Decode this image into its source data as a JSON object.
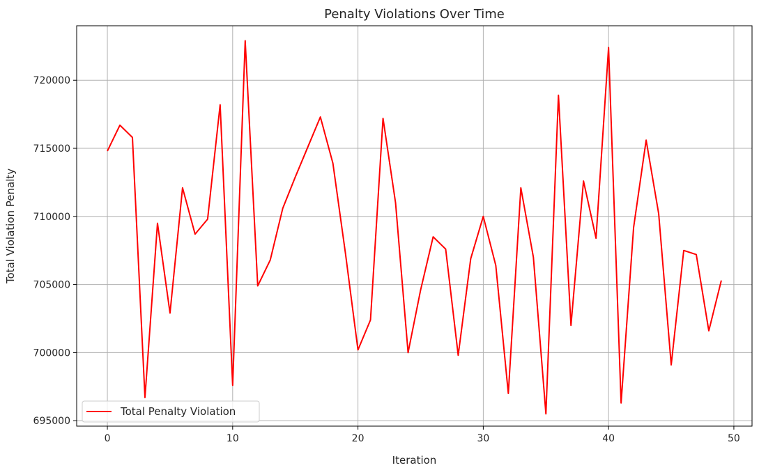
{
  "chart_data": {
    "type": "line",
    "title": "Penalty Violations Over Time",
    "xlabel": "Iteration",
    "ylabel": "Total Violation Penalty",
    "xlim": [
      -2.45,
      51.45
    ],
    "ylim": [
      694600,
      724000
    ],
    "xticks": [
      0,
      10,
      20,
      30,
      40,
      50
    ],
    "yticks": [
      695000,
      700000,
      705000,
      710000,
      715000,
      720000
    ],
    "grid": true,
    "legend_position": "lower-left",
    "colors": {
      "series": "#ff0000",
      "grid": "#b0b0b0",
      "axes": "#000000"
    },
    "series": [
      {
        "name": "Total Penalty Violation",
        "x": [
          0,
          1,
          2,
          3,
          4,
          5,
          6,
          7,
          8,
          9,
          10,
          11,
          12,
          13,
          14,
          15,
          16,
          17,
          18,
          19,
          20,
          21,
          22,
          23,
          24,
          25,
          26,
          27,
          28,
          29,
          30,
          31,
          32,
          33,
          34,
          35,
          36,
          37,
          38,
          39,
          40,
          41,
          42,
          43,
          44,
          45,
          46,
          47,
          48,
          49
        ],
        "values": [
          714800,
          716700,
          715800,
          696700,
          709500,
          702900,
          712100,
          708700,
          709800,
          718200,
          697600,
          722900,
          704900,
          706800,
          710600,
          712900,
          715100,
          717300,
          713900,
          707300,
          700200,
          702400,
          717200,
          711000,
          700000,
          704600,
          708500,
          707600,
          699800,
          706900,
          710000,
          706400,
          697000,
          712100,
          707000,
          695500,
          718900,
          702000,
          712600,
          708400,
          722400,
          696300,
          709200,
          715600,
          710200,
          699100,
          707500,
          707200,
          701600,
          705300
        ]
      }
    ]
  }
}
